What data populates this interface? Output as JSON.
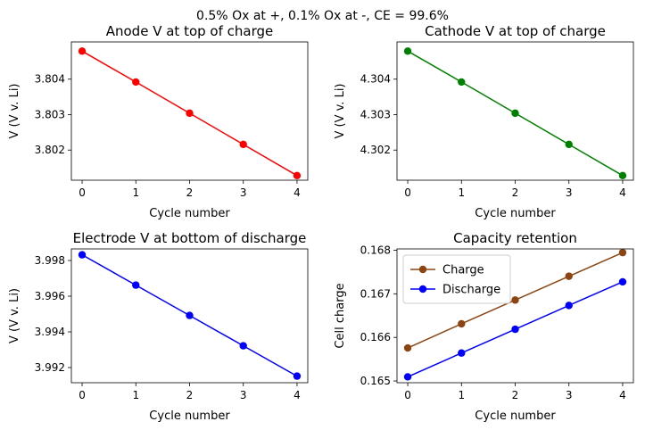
{
  "figure": {
    "suptitle": "0.5% Ox at +, 0.1% Ox at -, CE = 99.6%"
  },
  "chart_data": [
    {
      "type": "line",
      "title": "Anode V at top of charge",
      "xlabel": "Cycle number",
      "ylabel": "V (V v. Li)",
      "x": [
        0,
        1,
        2,
        3,
        4
      ],
      "xticks": [
        "0",
        "1",
        "2",
        "3",
        "4"
      ],
      "xlim": [
        -0.2,
        4.2
      ],
      "ylim": [
        3.80115,
        3.80505
      ],
      "yticks": [
        "3.802",
        "3.803",
        "3.804"
      ],
      "legend": null,
      "series": [
        {
          "color": "#ff0000",
          "values": [
            3.80479,
            3.80392,
            3.80304,
            3.80216,
            3.80128
          ]
        }
      ]
    },
    {
      "type": "line",
      "title": "Cathode V at top of charge",
      "xlabel": "Cycle number",
      "ylabel": "V (V v. Li)",
      "x": [
        0,
        1,
        2,
        3,
        4
      ],
      "xticks": [
        "0",
        "1",
        "2",
        "3",
        "4"
      ],
      "xlim": [
        -0.2,
        4.2
      ],
      "ylim": [
        4.30115,
        4.30505
      ],
      "yticks": [
        "4.302",
        "4.303",
        "4.304"
      ],
      "legend": null,
      "series": [
        {
          "color": "#008000",
          "values": [
            4.30479,
            4.30392,
            4.30304,
            4.30216,
            4.30128
          ]
        }
      ]
    },
    {
      "type": "line",
      "title": "Electrode V at bottom of discharge",
      "xlabel": "Cycle number",
      "ylabel": "V (V v. Li)",
      "x": [
        0,
        1,
        2,
        3,
        4
      ],
      "xticks": [
        "0",
        "1",
        "2",
        "3",
        "4"
      ],
      "xlim": [
        -0.2,
        4.2
      ],
      "ylim": [
        3.99115,
        3.99865
      ],
      "yticks": [
        "3.992",
        "3.994",
        "3.996",
        "3.998"
      ],
      "legend": null,
      "series": [
        {
          "color": "#0000ff",
          "values": [
            3.99832,
            3.99662,
            3.99492,
            3.99322,
            3.99152
          ]
        }
      ]
    },
    {
      "type": "line",
      "title": "Capacity retention",
      "xlabel": "Cycle number",
      "ylabel": "Cell charge",
      "x": [
        0,
        1,
        2,
        3,
        4
      ],
      "xticks": [
        "0",
        "1",
        "2",
        "3",
        "4"
      ],
      "xlim": [
        -0.2,
        4.2
      ],
      "ylim": [
        0.16496,
        0.16803
      ],
      "yticks": [
        "0.165",
        "0.166",
        "0.167",
        "0.168"
      ],
      "legend": "upper left",
      "series": [
        {
          "name": "Charge",
          "color": "#8b4513",
          "values": [
            0.165757,
            0.166311,
            0.166856,
            0.167403,
            0.167945
          ]
        },
        {
          "name": "Discharge",
          "color": "#0000ff",
          "values": [
            0.165094,
            0.165641,
            0.166186,
            0.166733,
            0.167274
          ]
        }
      ]
    }
  ]
}
